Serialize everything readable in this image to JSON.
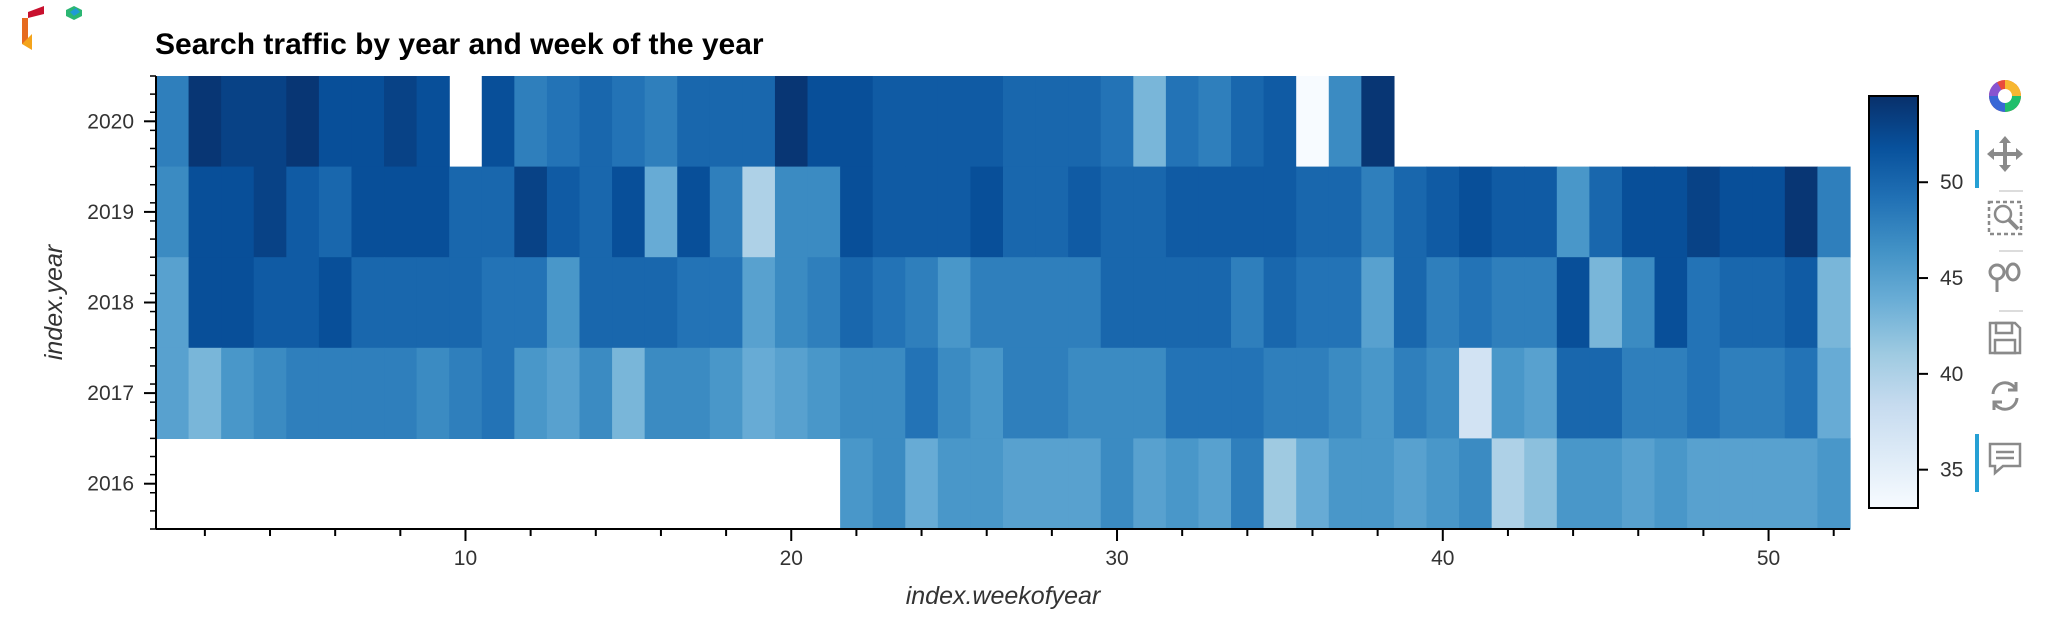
{
  "chart_data": {
    "type": "heatmap",
    "title": "Search traffic by year and week of the year",
    "xlabel": "index.weekofyear",
    "ylabel": "index.year",
    "x_ticks": [
      10,
      20,
      30,
      40,
      50
    ],
    "xlim": [
      0.5,
      52.5
    ],
    "y_categories": [
      "2016",
      "2017",
      "2018",
      "2019",
      "2020"
    ],
    "colorbar": {
      "ticks": [
        35,
        40,
        45,
        50
      ],
      "range": [
        33,
        54.5
      ],
      "colormap": [
        "#f7fbff",
        "#deebf7",
        "#c6dbef",
        "#9ecae1",
        "#6baed6",
        "#4292c6",
        "#2171b5",
        "#08519c",
        "#08306b"
      ]
    },
    "rows": [
      {
        "year": "2020",
        "values": [
          48,
          54,
          53,
          53,
          54,
          52,
          52,
          53,
          52,
          null,
          52,
          48,
          49,
          50,
          49,
          48,
          50,
          50,
          50,
          54,
          52,
          52,
          51,
          51,
          51,
          51,
          50,
          50,
          50,
          49,
          43,
          49,
          48,
          50,
          51,
          33,
          47,
          54,
          null,
          null,
          null,
          null,
          null,
          null,
          null,
          null,
          null,
          null,
          null,
          null,
          null,
          null
        ]
      },
      {
        "year": "2019",
        "values": [
          47,
          52,
          52,
          53,
          51,
          50,
          52,
          52,
          52,
          50,
          50,
          53,
          51,
          50,
          52,
          44,
          52,
          48,
          40,
          47,
          47,
          52,
          51,
          51,
          51,
          52,
          50,
          50,
          51,
          50,
          50,
          51,
          51,
          51,
          51,
          50,
          50,
          48,
          50,
          51,
          52,
          51,
          51,
          46,
          50,
          52,
          52,
          53,
          52,
          52,
          54,
          48
        ]
      },
      {
        "year": "2018",
        "values": [
          45,
          52,
          52,
          51,
          51,
          52,
          50,
          50,
          50,
          50,
          49,
          49,
          46,
          50,
          50,
          50,
          49,
          49,
          45,
          47,
          48,
          50,
          49,
          48,
          46,
          48,
          48,
          48,
          48,
          50,
          50,
          50,
          50,
          48,
          50,
          49,
          49,
          45,
          50,
          48,
          49,
          48,
          48,
          52,
          43,
          47,
          52,
          49,
          50,
          50,
          51,
          43
        ]
      },
      {
        "year": "2017",
        "values": [
          45,
          43,
          46,
          47,
          48,
          48,
          48,
          48,
          47,
          48,
          49,
          46,
          45,
          47,
          43,
          47,
          47,
          46,
          44,
          45,
          46,
          47,
          47,
          49,
          47,
          46,
          48,
          48,
          47,
          47,
          47,
          49,
          49,
          49,
          48,
          48,
          47,
          46,
          48,
          47,
          37,
          46,
          45,
          50,
          50,
          48,
          48,
          49,
          48,
          48,
          49,
          44
        ]
      },
      {
        "year": "2016",
        "values": [
          null,
          null,
          null,
          null,
          null,
          null,
          null,
          null,
          null,
          null,
          null,
          null,
          null,
          null,
          null,
          null,
          null,
          null,
          null,
          null,
          null,
          46,
          47,
          44,
          46,
          46,
          45,
          45,
          45,
          47,
          45,
          46,
          45,
          48,
          41,
          44,
          46,
          46,
          45,
          46,
          47,
          40,
          42,
          46,
          46,
          45,
          46,
          45,
          45,
          45,
          45,
          46
        ]
      }
    ]
  },
  "toolbar": {
    "tools": [
      {
        "name": "bokeh-logo-icon",
        "active": false
      },
      {
        "name": "pan-icon",
        "active": true
      },
      {
        "name": "box-zoom-icon",
        "active": false
      },
      {
        "name": "wheel-zoom-icon",
        "active": false
      },
      {
        "name": "save-icon",
        "active": false
      },
      {
        "name": "reset-icon",
        "active": false
      },
      {
        "name": "hover-icon",
        "active": true
      }
    ]
  }
}
